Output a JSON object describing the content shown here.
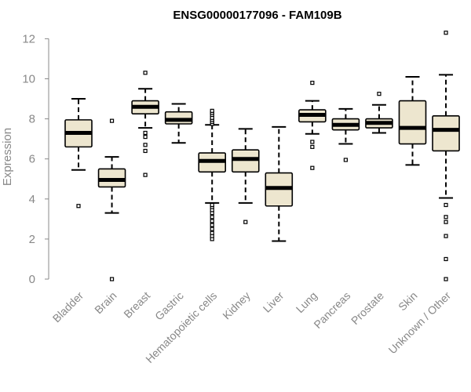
{
  "chart_data": {
    "type": "boxplot",
    "title": "ENSG00000177096 - FAM109B",
    "xlabel": "",
    "ylabel": "Expression",
    "ylim": [
      0,
      12.5
    ],
    "yticks": [
      0,
      2,
      4,
      6,
      8,
      10,
      12
    ],
    "box_fill": "#ede6cf",
    "categories": [
      "Bladder",
      "Brain",
      "Breast",
      "Gastric",
      "Hematopoietic cells",
      "Kidney",
      "Liver",
      "Lung",
      "Pancreas",
      "Prostate",
      "Skin",
      "Unknown / Other"
    ],
    "boxes": [
      {
        "name": "Bladder",
        "q1": 6.6,
        "median": 7.3,
        "q3": 7.95,
        "whisker_low": 5.45,
        "whisker_high": 9.0,
        "outliers": [
          3.65
        ]
      },
      {
        "name": "Brain",
        "q1": 4.6,
        "median": 4.95,
        "q3": 5.5,
        "whisker_low": 3.3,
        "whisker_high": 6.1,
        "outliers": [
          0.0,
          7.9
        ]
      },
      {
        "name": "Breast",
        "q1": 8.25,
        "median": 8.6,
        "q3": 8.9,
        "whisker_low": 7.55,
        "whisker_high": 9.5,
        "outliers": [
          5.2,
          6.4,
          6.7,
          7.1,
          7.3,
          10.3
        ]
      },
      {
        "name": "Gastric",
        "q1": 7.75,
        "median": 7.95,
        "q3": 8.35,
        "whisker_low": 6.8,
        "whisker_high": 8.75,
        "outliers": []
      },
      {
        "name": "Hematopoietic cells",
        "q1": 5.35,
        "median": 5.9,
        "q3": 6.3,
        "whisker_low": 3.8,
        "whisker_high": 7.7,
        "outliers": [
          2.0,
          2.15,
          2.3,
          2.5,
          2.7,
          2.9,
          3.1,
          3.3,
          3.45,
          3.6,
          3.7,
          7.75,
          7.85,
          7.95,
          8.05,
          8.2,
          8.3,
          8.4
        ]
      },
      {
        "name": "Kidney",
        "q1": 5.35,
        "median": 6.0,
        "q3": 6.45,
        "whisker_low": 3.8,
        "whisker_high": 7.5,
        "outliers": [
          2.85
        ]
      },
      {
        "name": "Liver",
        "q1": 3.65,
        "median": 4.55,
        "q3": 5.3,
        "whisker_low": 1.9,
        "whisker_high": 7.6,
        "outliers": []
      },
      {
        "name": "Lung",
        "q1": 7.85,
        "median": 8.2,
        "q3": 8.45,
        "whisker_low": 7.25,
        "whisker_high": 8.9,
        "outliers": [
          5.55,
          6.6,
          6.85,
          9.8
        ]
      },
      {
        "name": "Pancreas",
        "q1": 7.45,
        "median": 7.7,
        "q3": 8.0,
        "whisker_low": 6.75,
        "whisker_high": 8.5,
        "outliers": [
          5.95
        ]
      },
      {
        "name": "Prostate",
        "q1": 7.55,
        "median": 7.8,
        "q3": 8.0,
        "whisker_low": 7.3,
        "whisker_high": 8.7,
        "outliers": [
          9.25
        ]
      },
      {
        "name": "Skin",
        "q1": 6.75,
        "median": 7.55,
        "q3": 8.9,
        "whisker_low": 5.7,
        "whisker_high": 10.1,
        "outliers": []
      },
      {
        "name": "Unknown / Other",
        "q1": 6.4,
        "median": 7.45,
        "q3": 8.15,
        "whisker_low": 4.05,
        "whisker_high": 10.2,
        "outliers": [
          0.0,
          1.0,
          2.15,
          2.85,
          3.1,
          3.7,
          12.3
        ]
      }
    ]
  }
}
